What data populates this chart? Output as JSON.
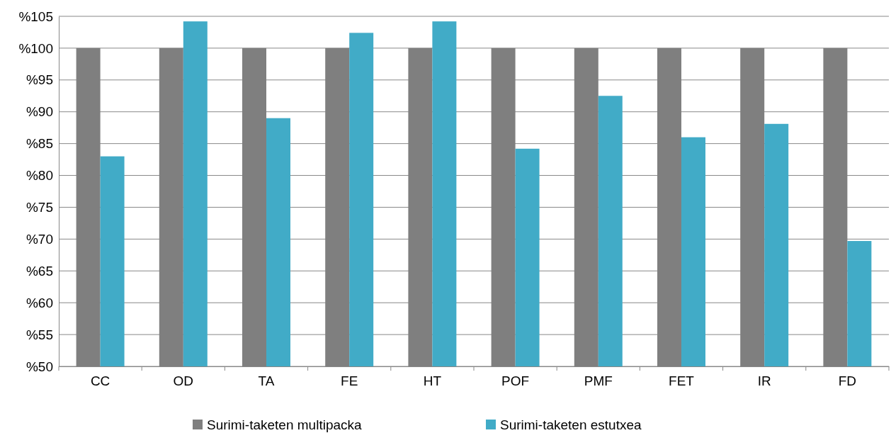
{
  "chart_data": {
    "type": "bar",
    "categories": [
      "CC",
      "OD",
      "TA",
      "FE",
      "HT",
      "POF",
      "PMF",
      "FET",
      "IR",
      "FD"
    ],
    "series": [
      {
        "name": "Surimi-taketen multipacka",
        "color": "#7f7f7f",
        "values": [
          100,
          100,
          100,
          100,
          100,
          100,
          100,
          100,
          100,
          100
        ]
      },
      {
        "name": "Surimi-taketen estutxea",
        "color": "#41abc7",
        "values": [
          83.0,
          104.2,
          89.0,
          102.4,
          104.2,
          84.2,
          92.5,
          86.0,
          88.1,
          69.7
        ]
      }
    ],
    "ylim": [
      50,
      105
    ],
    "yticks": [
      {
        "value": 50,
        "label": "%50"
      },
      {
        "value": 55,
        "label": "%55"
      },
      {
        "value": 60,
        "label": "%60"
      },
      {
        "value": 65,
        "label": "%65"
      },
      {
        "value": 70,
        "label": "%70"
      },
      {
        "value": 75,
        "label": "%75"
      },
      {
        "value": 80,
        "label": "%80"
      },
      {
        "value": 85,
        "label": "%85"
      },
      {
        "value": 90,
        "label": "%90"
      },
      {
        "value": 95,
        "label": "%95"
      },
      {
        "value": 100,
        "label": "%100"
      },
      {
        "value": 105,
        "label": "%105"
      }
    ],
    "grid": "y",
    "legend": "bottom"
  }
}
